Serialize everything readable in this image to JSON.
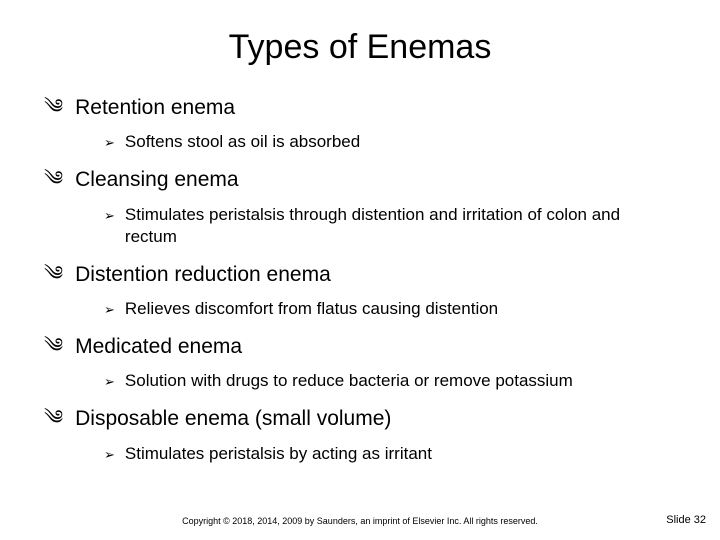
{
  "title": "Types of Enemas",
  "items": [
    {
      "label": "Retention enema",
      "sub": [
        {
          "text": "Softens stool as oil is absorbed"
        }
      ]
    },
    {
      "label": "Cleansing enema",
      "sub": [
        {
          "text": "Stimulates peristalsis through distention and irritation of colon and rectum"
        }
      ]
    },
    {
      "label": "Distention reduction enema",
      "sub": [
        {
          "text": "Relieves discomfort from flatus causing distention"
        }
      ]
    },
    {
      "label": "Medicated enema",
      "sub": [
        {
          "text": "Solution with drugs to reduce bacteria or remove potassium"
        }
      ]
    },
    {
      "label": "Disposable enema (small volume)",
      "sub": [
        {
          "text": "Stimulates peristalsis by acting as irritant"
        }
      ]
    }
  ],
  "bullet_l1": "༄",
  "bullet_l2": "➢",
  "footer": "Copyright © 2018, 2014, 2009 by Saunders, an imprint of Elsevier Inc. All rights reserved.",
  "slide_number": "Slide 32",
  "colors": {
    "text": "#000000",
    "background": "#ffffff"
  },
  "fontsize": {
    "title": 34,
    "l1": 21,
    "l2": 17,
    "footer": 9,
    "slidenum": 11
  }
}
